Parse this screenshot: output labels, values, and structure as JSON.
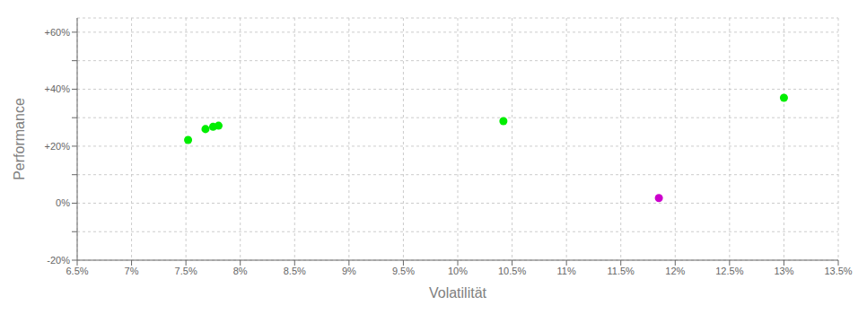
{
  "chart_data": {
    "type": "scatter",
    "xlabel": "Volatilität",
    "ylabel": "Performance",
    "xlim": [
      0.065,
      0.135
    ],
    "ylim": [
      -0.2,
      0.65
    ],
    "xticks": [
      {
        "value": 0.065,
        "label": "6.5%"
      },
      {
        "value": 0.07,
        "label": "7%"
      },
      {
        "value": 0.075,
        "label": "7.5%"
      },
      {
        "value": 0.08,
        "label": "8%"
      },
      {
        "value": 0.085,
        "label": "8.5%"
      },
      {
        "value": 0.09,
        "label": "9%"
      },
      {
        "value": 0.095,
        "label": "9.5%"
      },
      {
        "value": 0.1,
        "label": "10%"
      },
      {
        "value": 0.105,
        "label": "10.5%"
      },
      {
        "value": 0.11,
        "label": "11%"
      },
      {
        "value": 0.115,
        "label": "11.5%"
      },
      {
        "value": 0.12,
        "label": "12%"
      },
      {
        "value": 0.125,
        "label": "12.5%"
      },
      {
        "value": 0.13,
        "label": "13%"
      },
      {
        "value": 0.135,
        "label": "13.5%"
      }
    ],
    "yticks": [
      {
        "value": -0.2,
        "label": "-20%"
      },
      {
        "value": -0.1,
        "label": null
      },
      {
        "value": 0.0,
        "label": "0%"
      },
      {
        "value": 0.1,
        "label": null
      },
      {
        "value": 0.2,
        "label": "+20%"
      },
      {
        "value": 0.3,
        "label": null
      },
      {
        "value": 0.4,
        "label": "+40%"
      },
      {
        "value": 0.5,
        "label": null
      },
      {
        "value": 0.6,
        "label": "+60%"
      }
    ],
    "grid": true,
    "series": [
      {
        "color": "#00ee00",
        "x": [
          0.0752,
          0.0768,
          0.0775,
          0.078,
          0.1042,
          0.13
        ],
        "values": [
          0.222,
          0.26,
          0.268,
          0.272,
          0.288,
          0.37
        ]
      },
      {
        "color": "#cc00cc",
        "x": [
          0.1185
        ],
        "values": [
          0.018
        ]
      }
    ]
  }
}
